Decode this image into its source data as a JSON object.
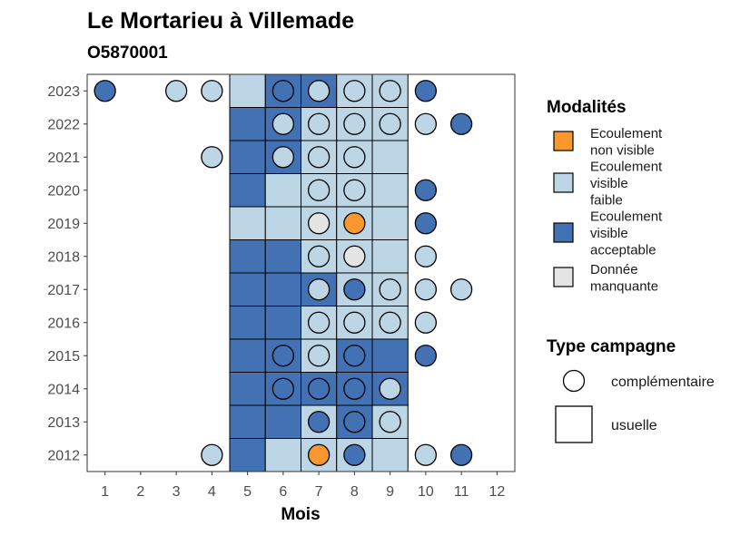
{
  "chart_data": {
    "type": "heatmap",
    "title": "Le Mortarieu à Villemade",
    "subtitle": "O5870001",
    "xlabel": "Mois",
    "ylabel": "",
    "x_ticks": [
      "1",
      "2",
      "3",
      "4",
      "5",
      "6",
      "7",
      "8",
      "9",
      "10",
      "11",
      "12"
    ],
    "y_ticks": [
      "2012",
      "2013",
      "2014",
      "2015",
      "2016",
      "2017",
      "2018",
      "2019",
      "2020",
      "2021",
      "2022",
      "2023"
    ],
    "xlim": [
      0.5,
      12.5
    ],
    "ylim": [
      2011.5,
      2023.5
    ],
    "grid": false,
    "legend_placement": "right",
    "colors": {
      "Ecoulement non visible": "#F8982E",
      "Ecoulement visible faible": "#BCD6E6",
      "Ecoulement visible acceptable": "#4372B4",
      "Donnée manquante": "#E4E4E4"
    },
    "modalites_legend": {
      "title": "Modalités",
      "items": [
        {
          "key": "Ecoulement non visible",
          "lines": [
            "Ecoulement",
            "non visible"
          ]
        },
        {
          "key": "Ecoulement visible faible",
          "lines": [
            "Ecoulement",
            "visible",
            "faible"
          ]
        },
        {
          "key": "Ecoulement visible acceptable",
          "lines": [
            "Ecoulement",
            "visible",
            "acceptable"
          ]
        },
        {
          "key": "Donnée manquante",
          "lines": [
            "Donnée",
            "manquante"
          ]
        }
      ]
    },
    "campagne_legend": {
      "title": "Type campagne",
      "items": [
        {
          "shape": "circle",
          "label": "complémentaire"
        },
        {
          "shape": "square",
          "label": "usuelle"
        }
      ]
    },
    "usuelle_tiles": [
      {
        "year": 2023,
        "month": 5,
        "value": "Ecoulement visible faible"
      },
      {
        "year": 2023,
        "month": 6,
        "value": "Ecoulement visible acceptable"
      },
      {
        "year": 2023,
        "month": 7,
        "value": "Ecoulement visible acceptable"
      },
      {
        "year": 2023,
        "month": 8,
        "value": "Ecoulement visible faible"
      },
      {
        "year": 2023,
        "month": 9,
        "value": "Ecoulement visible faible"
      },
      {
        "year": 2022,
        "month": 5,
        "value": "Ecoulement visible acceptable"
      },
      {
        "year": 2022,
        "month": 6,
        "value": "Ecoulement visible acceptable"
      },
      {
        "year": 2022,
        "month": 7,
        "value": "Ecoulement visible faible"
      },
      {
        "year": 2022,
        "month": 8,
        "value": "Ecoulement visible faible"
      },
      {
        "year": 2022,
        "month": 9,
        "value": "Ecoulement visible faible"
      },
      {
        "year": 2021,
        "month": 5,
        "value": "Ecoulement visible acceptable"
      },
      {
        "year": 2021,
        "month": 6,
        "value": "Ecoulement visible acceptable"
      },
      {
        "year": 2021,
        "month": 7,
        "value": "Ecoulement visible faible"
      },
      {
        "year": 2021,
        "month": 8,
        "value": "Ecoulement visible faible"
      },
      {
        "year": 2021,
        "month": 9,
        "value": "Ecoulement visible faible"
      },
      {
        "year": 2020,
        "month": 5,
        "value": "Ecoulement visible acceptable"
      },
      {
        "year": 2020,
        "month": 6,
        "value": "Ecoulement visible faible"
      },
      {
        "year": 2020,
        "month": 7,
        "value": "Ecoulement visible faible"
      },
      {
        "year": 2020,
        "month": 8,
        "value": "Ecoulement visible faible"
      },
      {
        "year": 2020,
        "month": 9,
        "value": "Ecoulement visible faible"
      },
      {
        "year": 2019,
        "month": 5,
        "value": "Ecoulement visible faible"
      },
      {
        "year": 2019,
        "month": 6,
        "value": "Ecoulement visible faible"
      },
      {
        "year": 2019,
        "month": 7,
        "value": "Ecoulement visible faible"
      },
      {
        "year": 2019,
        "month": 8,
        "value": "Ecoulement visible faible"
      },
      {
        "year": 2019,
        "month": 9,
        "value": "Ecoulement visible faible"
      },
      {
        "year": 2018,
        "month": 5,
        "value": "Ecoulement visible acceptable"
      },
      {
        "year": 2018,
        "month": 6,
        "value": "Ecoulement visible acceptable"
      },
      {
        "year": 2018,
        "month": 7,
        "value": "Ecoulement visible faible"
      },
      {
        "year": 2018,
        "month": 8,
        "value": "Ecoulement visible faible"
      },
      {
        "year": 2018,
        "month": 9,
        "value": "Ecoulement visible faible"
      },
      {
        "year": 2017,
        "month": 5,
        "value": "Ecoulement visible acceptable"
      },
      {
        "year": 2017,
        "month": 6,
        "value": "Ecoulement visible acceptable"
      },
      {
        "year": 2017,
        "month": 7,
        "value": "Ecoulement visible acceptable"
      },
      {
        "year": 2017,
        "month": 8,
        "value": "Ecoulement visible faible"
      },
      {
        "year": 2017,
        "month": 9,
        "value": "Ecoulement visible faible"
      },
      {
        "year": 2016,
        "month": 5,
        "value": "Ecoulement visible acceptable"
      },
      {
        "year": 2016,
        "month": 6,
        "value": "Ecoulement visible acceptable"
      },
      {
        "year": 2016,
        "month": 7,
        "value": "Ecoulement visible faible"
      },
      {
        "year": 2016,
        "month": 8,
        "value": "Ecoulement visible faible"
      },
      {
        "year": 2016,
        "month": 9,
        "value": "Ecoulement visible faible"
      },
      {
        "year": 2015,
        "month": 5,
        "value": "Ecoulement visible acceptable"
      },
      {
        "year": 2015,
        "month": 6,
        "value": "Ecoulement visible acceptable"
      },
      {
        "year": 2015,
        "month": 7,
        "value": "Ecoulement visible faible"
      },
      {
        "year": 2015,
        "month": 8,
        "value": "Ecoulement visible acceptable"
      },
      {
        "year": 2015,
        "month": 9,
        "value": "Ecoulement visible acceptable"
      },
      {
        "year": 2014,
        "month": 5,
        "value": "Ecoulement visible acceptable"
      },
      {
        "year": 2014,
        "month": 6,
        "value": "Ecoulement visible acceptable"
      },
      {
        "year": 2014,
        "month": 7,
        "value": "Ecoulement visible acceptable"
      },
      {
        "year": 2014,
        "month": 8,
        "value": "Ecoulement visible acceptable"
      },
      {
        "year": 2014,
        "month": 9,
        "value": "Ecoulement visible acceptable"
      },
      {
        "year": 2013,
        "month": 5,
        "value": "Ecoulement visible acceptable"
      },
      {
        "year": 2013,
        "month": 6,
        "value": "Ecoulement visible acceptable"
      },
      {
        "year": 2013,
        "month": 7,
        "value": "Ecoulement visible faible"
      },
      {
        "year": 2013,
        "month": 8,
        "value": "Ecoulement visible acceptable"
      },
      {
        "year": 2013,
        "month": 9,
        "value": "Ecoulement visible faible"
      },
      {
        "year": 2012,
        "month": 5,
        "value": "Ecoulement visible acceptable"
      },
      {
        "year": 2012,
        "month": 6,
        "value": "Ecoulement visible faible"
      },
      {
        "year": 2012,
        "month": 7,
        "value": "Ecoulement visible faible"
      },
      {
        "year": 2012,
        "month": 8,
        "value": "Ecoulement visible faible"
      },
      {
        "year": 2012,
        "month": 9,
        "value": "Ecoulement visible faible"
      }
    ],
    "complementaire_points": [
      {
        "year": 2023,
        "month": 1,
        "value": "Ecoulement visible acceptable"
      },
      {
        "year": 2023,
        "month": 3,
        "value": "Ecoulement visible faible"
      },
      {
        "year": 2023,
        "month": 4,
        "value": "Ecoulement visible faible"
      },
      {
        "year": 2023,
        "month": 6,
        "value": "Ecoulement visible acceptable"
      },
      {
        "year": 2023,
        "month": 7,
        "value": "Ecoulement visible faible"
      },
      {
        "year": 2023,
        "month": 8,
        "value": "Ecoulement visible faible"
      },
      {
        "year": 2023,
        "month": 9,
        "value": "Ecoulement visible faible"
      },
      {
        "year": 2023,
        "month": 10,
        "value": "Ecoulement visible acceptable"
      },
      {
        "year": 2022,
        "month": 6,
        "value": "Ecoulement visible faible"
      },
      {
        "year": 2022,
        "month": 7,
        "value": "Ecoulement visible faible"
      },
      {
        "year": 2022,
        "month": 8,
        "value": "Ecoulement visible faible"
      },
      {
        "year": 2022,
        "month": 9,
        "value": "Ecoulement visible faible"
      },
      {
        "year": 2022,
        "month": 10,
        "value": "Ecoulement visible faible"
      },
      {
        "year": 2022,
        "month": 11,
        "value": "Ecoulement visible acceptable"
      },
      {
        "year": 2021,
        "month": 4,
        "value": "Ecoulement visible faible"
      },
      {
        "year": 2021,
        "month": 6,
        "value": "Ecoulement visible faible"
      },
      {
        "year": 2021,
        "month": 7,
        "value": "Ecoulement visible faible"
      },
      {
        "year": 2021,
        "month": 8,
        "value": "Ecoulement visible faible"
      },
      {
        "year": 2020,
        "month": 7,
        "value": "Ecoulement visible faible"
      },
      {
        "year": 2020,
        "month": 8,
        "value": "Ecoulement visible faible"
      },
      {
        "year": 2020,
        "month": 10,
        "value": "Ecoulement visible acceptable"
      },
      {
        "year": 2019,
        "month": 7,
        "value": "Donnée manquante"
      },
      {
        "year": 2019,
        "month": 8,
        "value": "Ecoulement non visible"
      },
      {
        "year": 2019,
        "month": 10,
        "value": "Ecoulement visible acceptable"
      },
      {
        "year": 2018,
        "month": 7,
        "value": "Ecoulement visible faible"
      },
      {
        "year": 2018,
        "month": 8,
        "value": "Donnée manquante"
      },
      {
        "year": 2018,
        "month": 10,
        "value": "Ecoulement visible faible"
      },
      {
        "year": 2017,
        "month": 7,
        "value": "Ecoulement visible faible"
      },
      {
        "year": 2017,
        "month": 8,
        "value": "Ecoulement visible acceptable"
      },
      {
        "year": 2017,
        "month": 9,
        "value": "Ecoulement visible faible"
      },
      {
        "year": 2017,
        "month": 10,
        "value": "Ecoulement visible faible"
      },
      {
        "year": 2017,
        "month": 11,
        "value": "Ecoulement visible faible"
      },
      {
        "year": 2016,
        "month": 7,
        "value": "Ecoulement visible faible"
      },
      {
        "year": 2016,
        "month": 8,
        "value": "Ecoulement visible faible"
      },
      {
        "year": 2016,
        "month": 9,
        "value": "Ecoulement visible faible"
      },
      {
        "year": 2016,
        "month": 10,
        "value": "Ecoulement visible faible"
      },
      {
        "year": 2015,
        "month": 6,
        "value": "Ecoulement visible acceptable"
      },
      {
        "year": 2015,
        "month": 7,
        "value": "Ecoulement visible faible"
      },
      {
        "year": 2015,
        "month": 8,
        "value": "Ecoulement visible acceptable"
      },
      {
        "year": 2015,
        "month": 10,
        "value": "Ecoulement visible acceptable"
      },
      {
        "year": 2014,
        "month": 6,
        "value": "Ecoulement visible acceptable"
      },
      {
        "year": 2014,
        "month": 7,
        "value": "Ecoulement visible acceptable"
      },
      {
        "year": 2014,
        "month": 8,
        "value": "Ecoulement visible acceptable"
      },
      {
        "year": 2014,
        "month": 9,
        "value": "Ecoulement visible faible"
      },
      {
        "year": 2013,
        "month": 7,
        "value": "Ecoulement visible acceptable"
      },
      {
        "year": 2013,
        "month": 8,
        "value": "Ecoulement visible acceptable"
      },
      {
        "year": 2013,
        "month": 9,
        "value": "Ecoulement visible faible"
      },
      {
        "year": 2012,
        "month": 4,
        "value": "Ecoulement visible faible"
      },
      {
        "year": 2012,
        "month": 7,
        "value": "Ecoulement non visible"
      },
      {
        "year": 2012,
        "month": 8,
        "value": "Ecoulement visible acceptable"
      },
      {
        "year": 2012,
        "month": 10,
        "value": "Ecoulement visible faible"
      },
      {
        "year": 2012,
        "month": 11,
        "value": "Ecoulement visible acceptable"
      }
    ]
  }
}
